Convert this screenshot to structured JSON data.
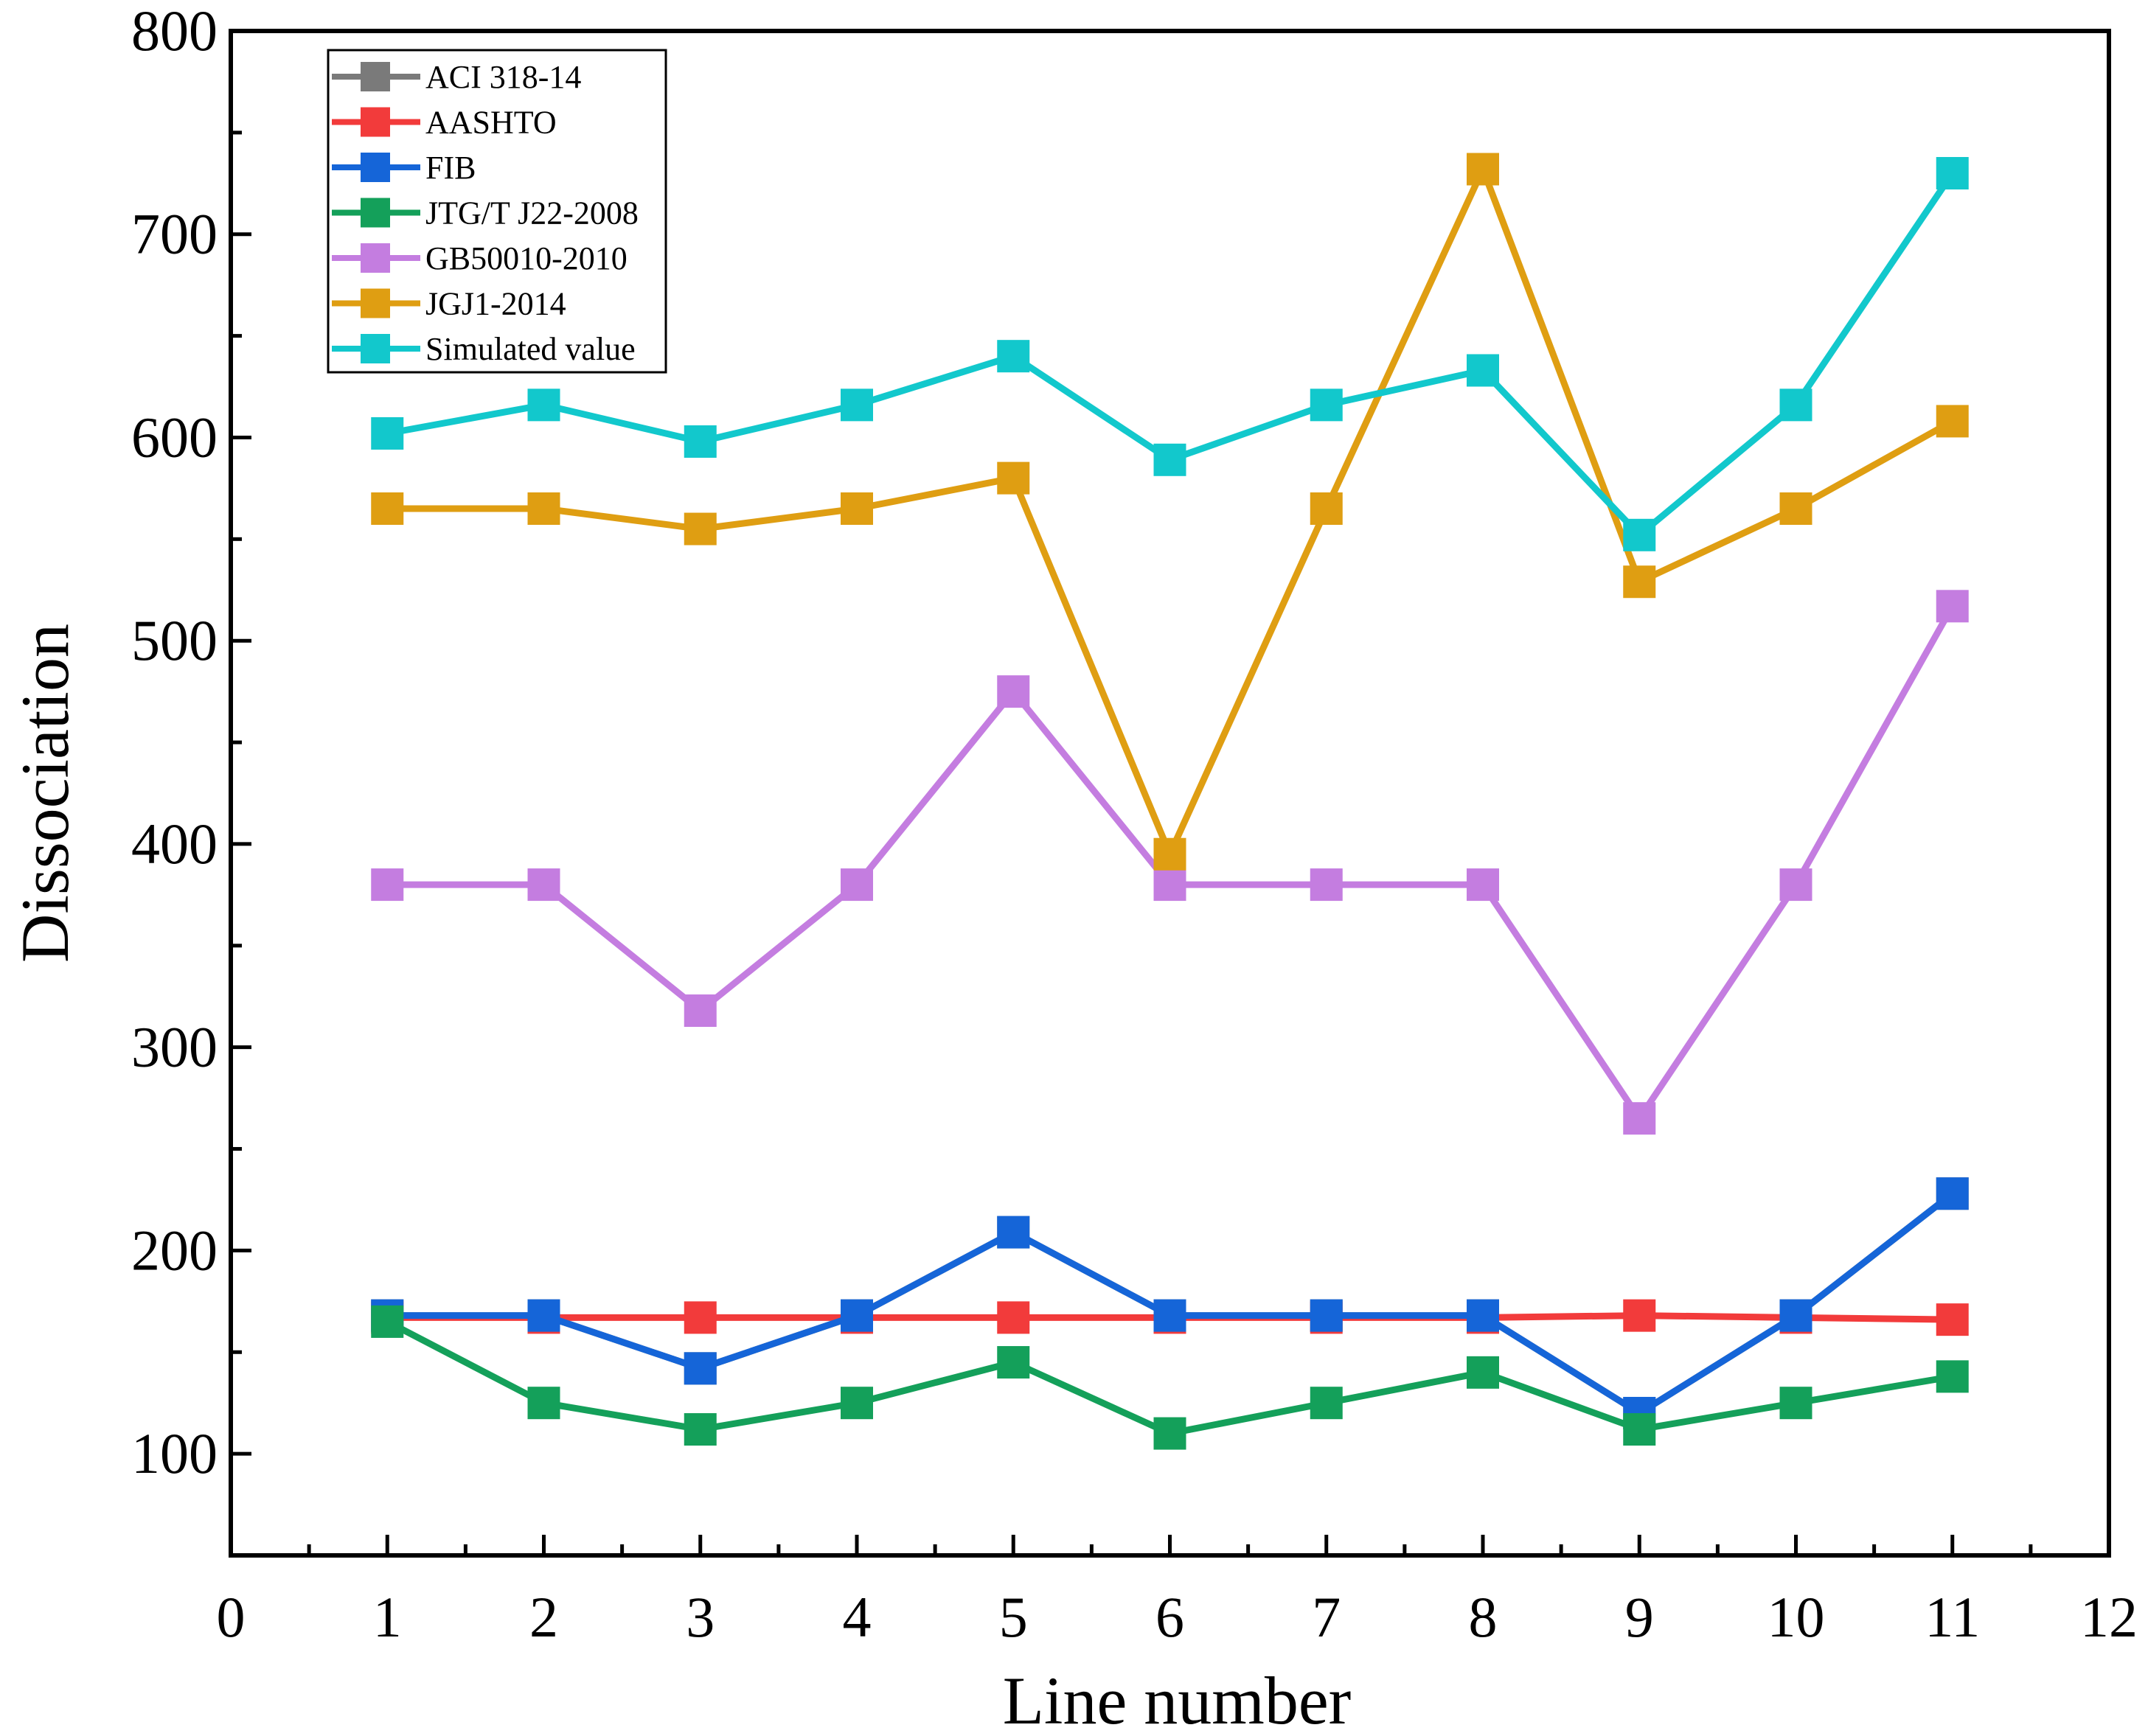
{
  "chart_data": {
    "type": "line",
    "title": "",
    "xlabel": "Line number",
    "ylabel": "Dissociation",
    "xlim": [
      0,
      12
    ],
    "ylim": [
      50,
      800
    ],
    "xticks": [
      0,
      1,
      2,
      3,
      4,
      5,
      6,
      7,
      8,
      9,
      10,
      11,
      12
    ],
    "yticks": [
      100,
      200,
      300,
      400,
      500,
      600,
      700,
      800
    ],
    "x": [
      1,
      2,
      3,
      4,
      5,
      6,
      7,
      8,
      9,
      10,
      11
    ],
    "legend_position": "top-left",
    "grid": false,
    "series": [
      {
        "name": "ACI 318-14",
        "color": "#7a7a7a",
        "values": [
          168,
          168,
          142,
          168,
          209,
          168,
          168,
          168,
          120,
          168,
          228
        ]
      },
      {
        "name": "AASHTO",
        "color": "#f23b3b",
        "values": [
          167,
          167,
          167,
          167,
          167,
          167,
          167,
          167,
          168,
          167,
          166
        ]
      },
      {
        "name": "FIB",
        "color": "#1565d8",
        "values": [
          168,
          168,
          142,
          168,
          209,
          168,
          168,
          168,
          120,
          168,
          228
        ]
      },
      {
        "name": "JTG/T J22-2008",
        "color": "#14a05a",
        "values": [
          165,
          125,
          112,
          125,
          145,
          110,
          125,
          140,
          112,
          125,
          138
        ]
      },
      {
        "name": "GB50010-2010",
        "color": "#c47de0",
        "values": [
          380,
          380,
          318,
          380,
          475,
          380,
          380,
          380,
          265,
          380,
          517
        ]
      },
      {
        "name": "JGJ1-2014",
        "color": "#df9e12",
        "values": [
          565,
          565,
          555,
          565,
          580,
          395,
          565,
          732,
          529,
          565,
          608
        ]
      },
      {
        "name": "Simulated value",
        "color": "#12c8cc",
        "values": [
          602,
          616,
          598,
          616,
          640,
          589,
          616,
          633,
          552,
          616,
          730
        ]
      }
    ]
  }
}
